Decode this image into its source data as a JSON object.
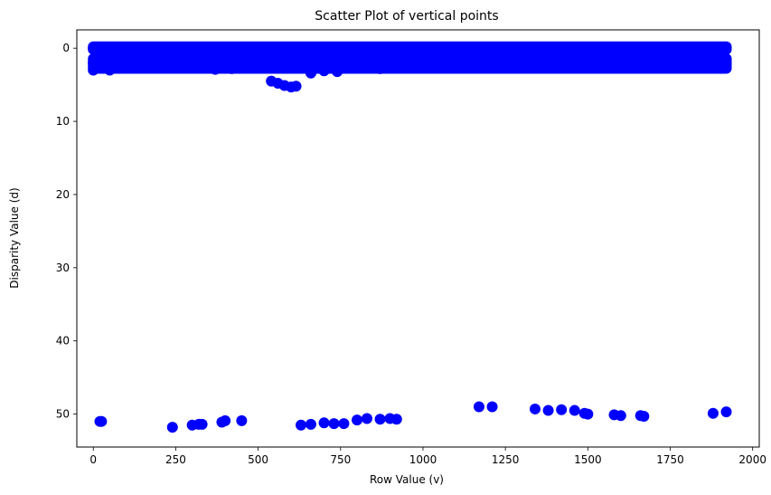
{
  "chart_data": {
    "type": "scatter",
    "title": "Scatter Plot of vertical points",
    "xlabel": "Row Value (v)",
    "ylabel": "Disparity Value (d)",
    "xlim": [
      -50,
      2020
    ],
    "ylim": [
      54.5,
      -2.5
    ],
    "y_inverted": true,
    "grid": false,
    "marker_color": "#0000ff",
    "xticks": [
      0,
      250,
      500,
      750,
      1000,
      1250,
      1500,
      1750,
      2000
    ],
    "xtick_labels": [
      "0",
      "250",
      "500",
      "750",
      "1000",
      "1250",
      "1500",
      "1750",
      "2000"
    ],
    "yticks": [
      0,
      10,
      20,
      30,
      40,
      50
    ],
    "ytick_labels": [
      "0",
      "10",
      "20",
      "30",
      "40",
      "50"
    ],
    "series": [
      {
        "points": [
          [
            0,
            0
          ],
          [
            0,
            2
          ],
          [
            0,
            3
          ],
          [
            20,
            2.5
          ],
          [
            50,
            3
          ],
          [
            100,
            2.5
          ],
          [
            150,
            2.5
          ],
          [
            200,
            2.3
          ],
          [
            250,
            2
          ],
          [
            300,
            2.2
          ],
          [
            350,
            2.5
          ],
          [
            400,
            2.3
          ],
          [
            450,
            2.2
          ],
          [
            500,
            2.3
          ],
          [
            550,
            2.5
          ],
          [
            600,
            2.2
          ],
          [
            650,
            2.2
          ],
          [
            700,
            2.1
          ],
          [
            750,
            2.2
          ],
          [
            800,
            2.2
          ],
          [
            850,
            2.4
          ],
          [
            900,
            2.2
          ],
          [
            950,
            2.1
          ],
          [
            1000,
            2.1
          ],
          [
            1050,
            2.1
          ],
          [
            1100,
            2.1
          ],
          [
            1150,
            2.1
          ],
          [
            1200,
            2.1
          ],
          [
            1250,
            2.1
          ],
          [
            1300,
            2.2
          ],
          [
            1350,
            2.2
          ],
          [
            1400,
            2.2
          ],
          [
            1450,
            2.2
          ],
          [
            1500,
            2.3
          ],
          [
            1550,
            2.2
          ],
          [
            1600,
            2.2
          ],
          [
            1650,
            2.3
          ],
          [
            1700,
            2.2
          ],
          [
            1750,
            2.1
          ],
          [
            1800,
            2.2
          ],
          [
            1850,
            2.1
          ],
          [
            1900,
            2.1
          ],
          [
            1920,
            2
          ],
          [
            540,
            4.5
          ],
          [
            560,
            4.8
          ],
          [
            580,
            5.1
          ],
          [
            600,
            5.3
          ],
          [
            615,
            5.2
          ],
          [
            660,
            3.4
          ],
          [
            700,
            3.1
          ],
          [
            740,
            3.2
          ],
          [
            370,
            2.9
          ],
          [
            420,
            2.8
          ],
          [
            870,
            2.8
          ],
          [
            920,
            2.6
          ],
          [
            20,
            51
          ],
          [
            25,
            51
          ],
          [
            240,
            51.8
          ],
          [
            300,
            51.5
          ],
          [
            320,
            51.4
          ],
          [
            330,
            51.4
          ],
          [
            390,
            51.1
          ],
          [
            400,
            50.9
          ],
          [
            450,
            50.9
          ],
          [
            630,
            51.5
          ],
          [
            660,
            51.4
          ],
          [
            700,
            51.2
          ],
          [
            730,
            51.3
          ],
          [
            760,
            51.3
          ],
          [
            800,
            50.8
          ],
          [
            830,
            50.6
          ],
          [
            870,
            50.7
          ],
          [
            900,
            50.6
          ],
          [
            920,
            50.7
          ],
          [
            1170,
            49
          ],
          [
            1210,
            49
          ],
          [
            1340,
            49.3
          ],
          [
            1380,
            49.5
          ],
          [
            1420,
            49.4
          ],
          [
            1460,
            49.5
          ],
          [
            1490,
            49.9
          ],
          [
            1500,
            50
          ],
          [
            1580,
            50.1
          ],
          [
            1600,
            50.2
          ],
          [
            1660,
            50.2
          ],
          [
            1670,
            50.3
          ],
          [
            1880,
            49.9
          ],
          [
            1920,
            49.7
          ]
        ]
      }
    ]
  }
}
